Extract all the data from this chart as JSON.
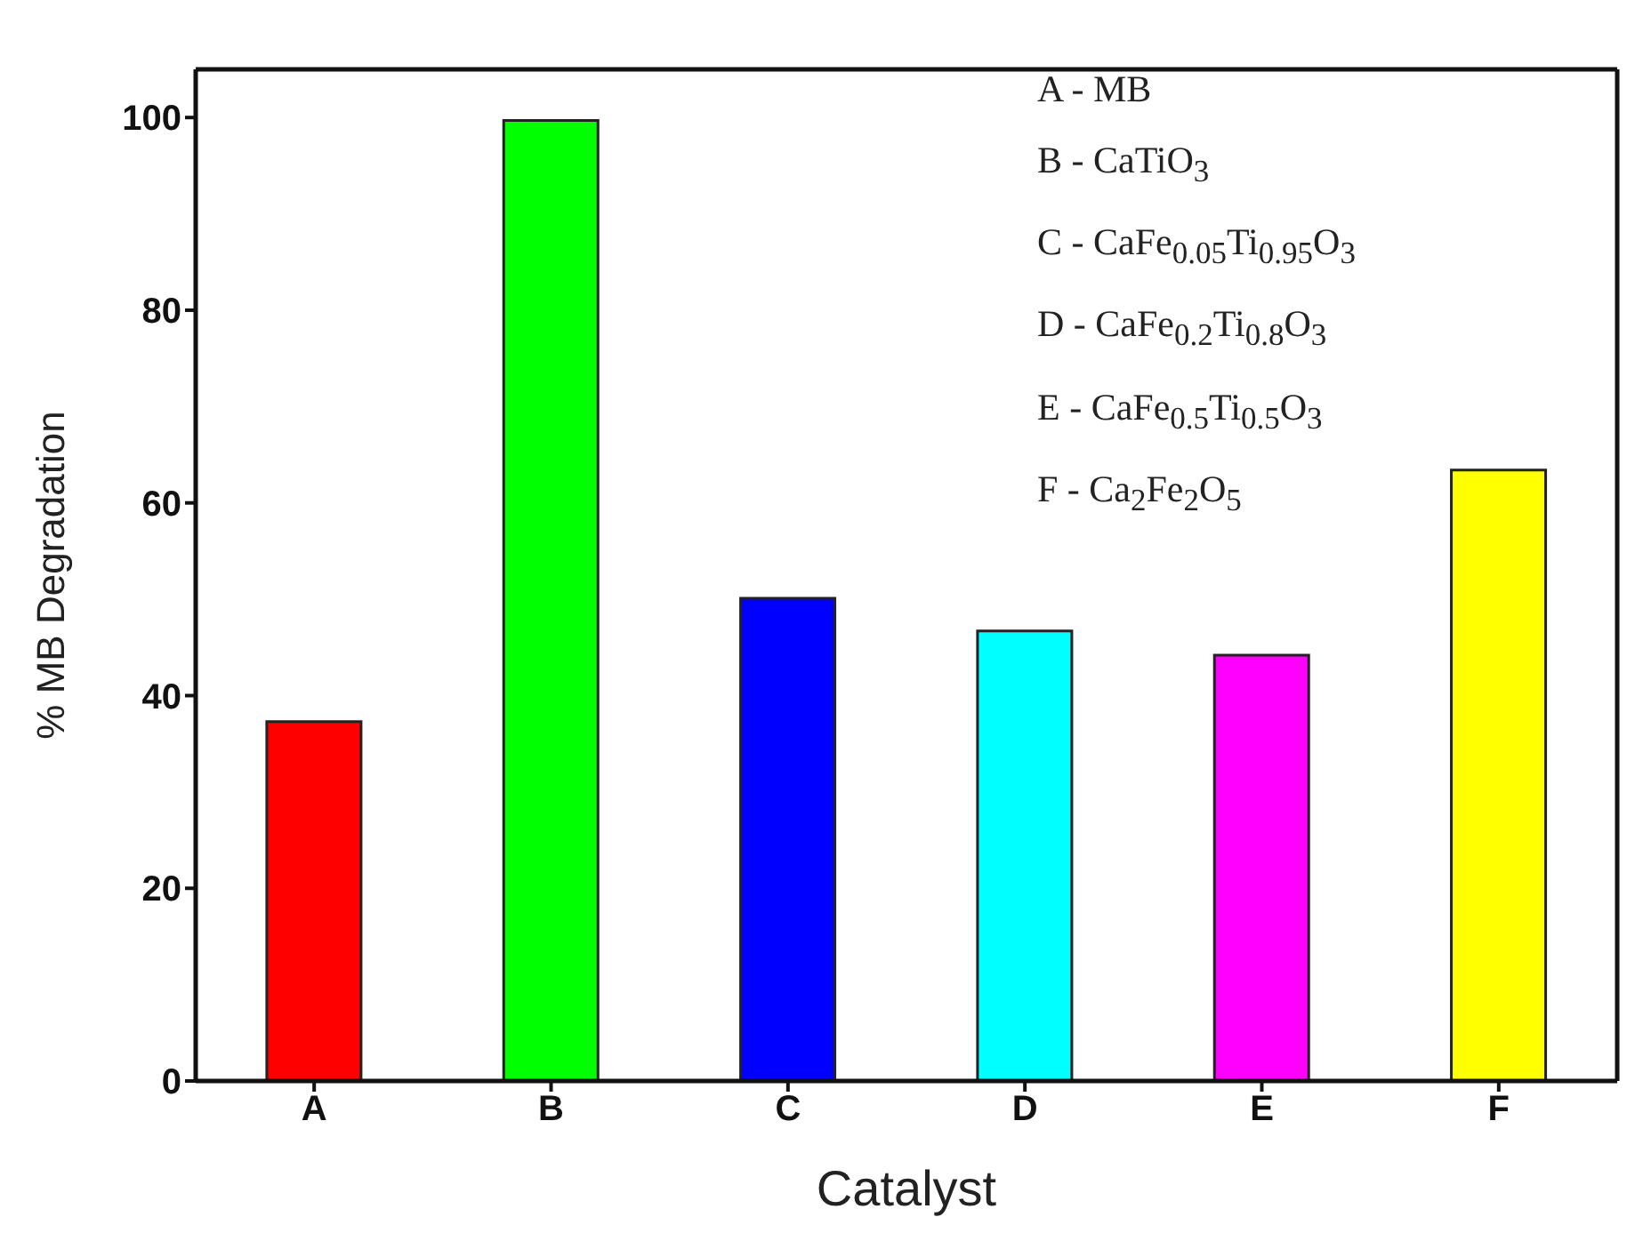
{
  "chart_data": {
    "type": "bar",
    "xlabel": "Catalyst",
    "ylabel": "% MB Degradation",
    "categories": [
      "A",
      "B",
      "C",
      "D",
      "E",
      "F"
    ],
    "values": [
      37.3,
      99.7,
      50.1,
      46.7,
      44.2,
      63.4
    ],
    "colors": [
      "#ff0000",
      "#00ff00",
      "#0000ff",
      "#00ffff",
      "#ff00ff",
      "#ffff00"
    ],
    "ylim": [
      0,
      105
    ],
    "yticks": [
      0,
      20,
      40,
      60,
      80,
      100
    ],
    "grid": false,
    "legend": false,
    "annotations": [
      "A - MB",
      "B - CaTiO$_{3}$",
      "C - CaFe$_{0.05}$Ti$_{0.95}$O$_{3}$",
      "D - CaFe$_{0.2}$Ti$_{0.8}$O$_{3}$",
      "E - CaFe$_{0.5}$Ti$_{0.5}$O$_{3}$",
      "F - Ca$_{2}$Fe$_{2}$O$_{5}$"
    ]
  }
}
